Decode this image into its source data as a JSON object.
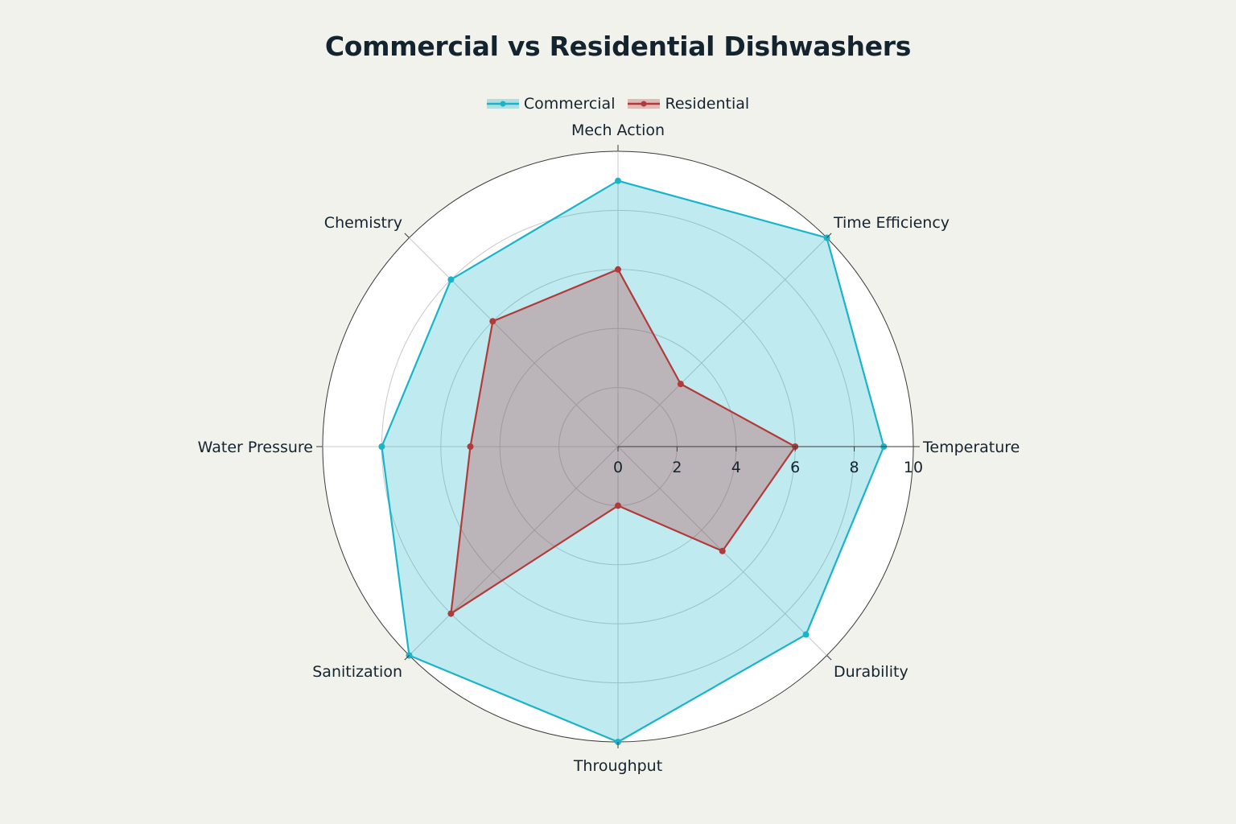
{
  "chart_data": {
    "type": "radar",
    "title": "Commercial vs Residential Dishwashers",
    "axes": [
      "Temperature",
      "Time Efficiency",
      "Mech Action",
      "Chemistry",
      "Water Pressure",
      "Sanitization",
      "Throughput",
      "Durability"
    ],
    "radial_ticks": [
      "0",
      "2",
      "4",
      "6",
      "8",
      "10"
    ],
    "rmax": 10,
    "grid": true,
    "legend_position": "top-center",
    "series": [
      {
        "name": "Commercial",
        "color": "#1ab4c8",
        "values": [
          9,
          10,
          9,
          8,
          8,
          10,
          10,
          9
        ]
      },
      {
        "name": "Residential",
        "color": "#b33a3a",
        "values": [
          6,
          3,
          6,
          6,
          5,
          8,
          2,
          5
        ]
      }
    ]
  }
}
